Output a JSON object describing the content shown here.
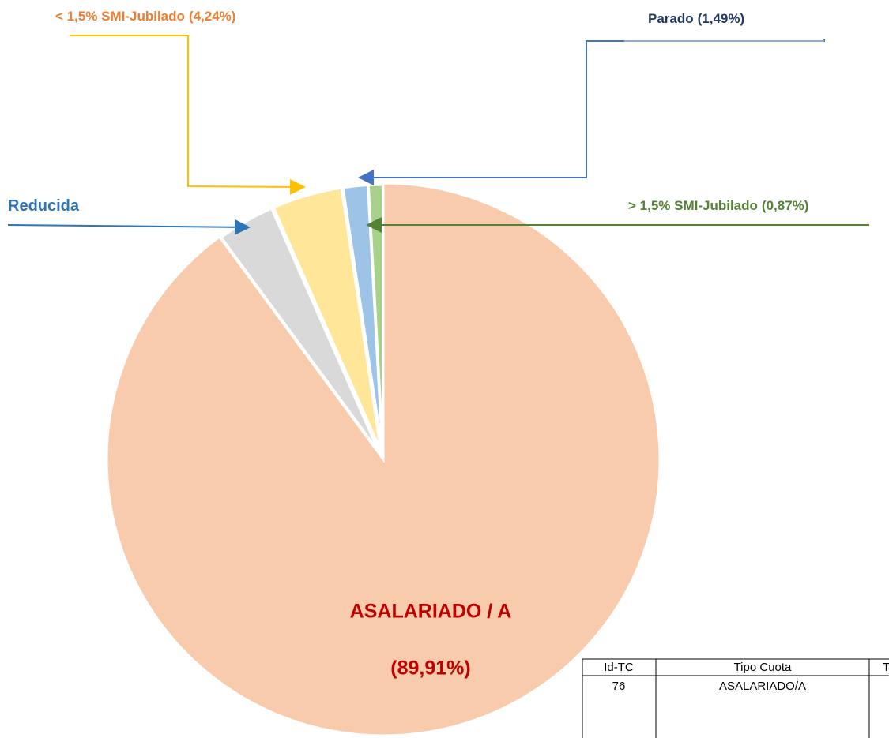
{
  "chart_data": {
    "type": "pie",
    "categories": [
      "ASALARIADO / A",
      "Reducida",
      "< 1,5% SMI-Jubilado",
      "Parado",
      "> 1,5% SMI-Jubilado"
    ],
    "values": [
      89.91,
      3.49,
      4.24,
      1.49,
      0.87
    ],
    "value_labels": [
      "(89,91%)",
      null,
      "(4,24%)",
      "(1,49%)",
      "(0,87%)"
    ],
    "colors": [
      "#f8cbad",
      "#d9d9d9",
      "#ffe699",
      "#9dc3e6",
      "#a9d18e"
    ],
    "label_colors": [
      "#c00000",
      "#2e75b6",
      "#ed7d31",
      "#1f3864",
      "#548235"
    ]
  },
  "table": {
    "header": [
      "Id-TC",
      "Tipo Cuota",
      "T"
    ],
    "rows": [
      [
        "76",
        "ASALARIADO/A"
      ]
    ]
  }
}
